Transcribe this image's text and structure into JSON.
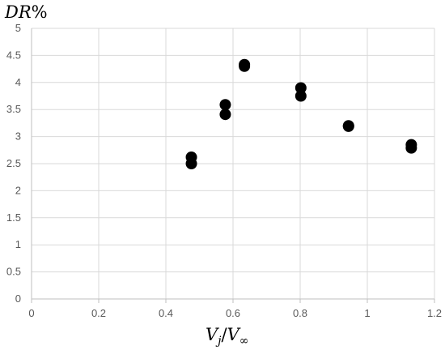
{
  "chart_data": {
    "type": "scatter",
    "title": "",
    "ylabel": {
      "prefix": "DR",
      "suffix": "%"
    },
    "xlabel": {
      "v1": "V",
      "sub1": "j",
      "slash": "/",
      "v2": "V",
      "sub2": "∞"
    },
    "xlim": [
      0,
      1.2
    ],
    "ylim": [
      0,
      5
    ],
    "x_ticks": [
      0,
      0.2,
      0.4,
      0.6,
      0.8,
      1,
      1.2
    ],
    "y_ticks": [
      0,
      0.5,
      1,
      1.5,
      2,
      2.5,
      3,
      3.5,
      4,
      4.5,
      5
    ],
    "x_tick_labels": [
      "0",
      "0.2",
      "0.4",
      "0.6",
      "0.8",
      "1",
      "1.2"
    ],
    "y_tick_labels": [
      "0",
      "0.5",
      "1",
      "1.5",
      "2",
      "2.5",
      "3",
      "3.5",
      "4",
      "4.5",
      "5"
    ],
    "grid": true,
    "legend": "none",
    "series": [
      {
        "points": [
          {
            "x": 0.476,
            "y": 2.62
          },
          {
            "x": 0.476,
            "y": 2.5
          },
          {
            "x": 0.577,
            "y": 3.59
          },
          {
            "x": 0.577,
            "y": 3.41
          },
          {
            "x": 0.634,
            "y": 4.33
          },
          {
            "x": 0.634,
            "y": 4.3
          },
          {
            "x": 0.802,
            "y": 3.9
          },
          {
            "x": 0.802,
            "y": 3.75
          },
          {
            "x": 0.944,
            "y": 3.2
          },
          {
            "x": 0.944,
            "y": 3.19
          },
          {
            "x": 1.131,
            "y": 2.85
          },
          {
            "x": 1.131,
            "y": 2.79
          }
        ]
      }
    ],
    "colors": {
      "marker": "#000000",
      "grid": "#d9d9d9",
      "axis": "#bfbfbf",
      "tick_text": "#595959"
    }
  }
}
